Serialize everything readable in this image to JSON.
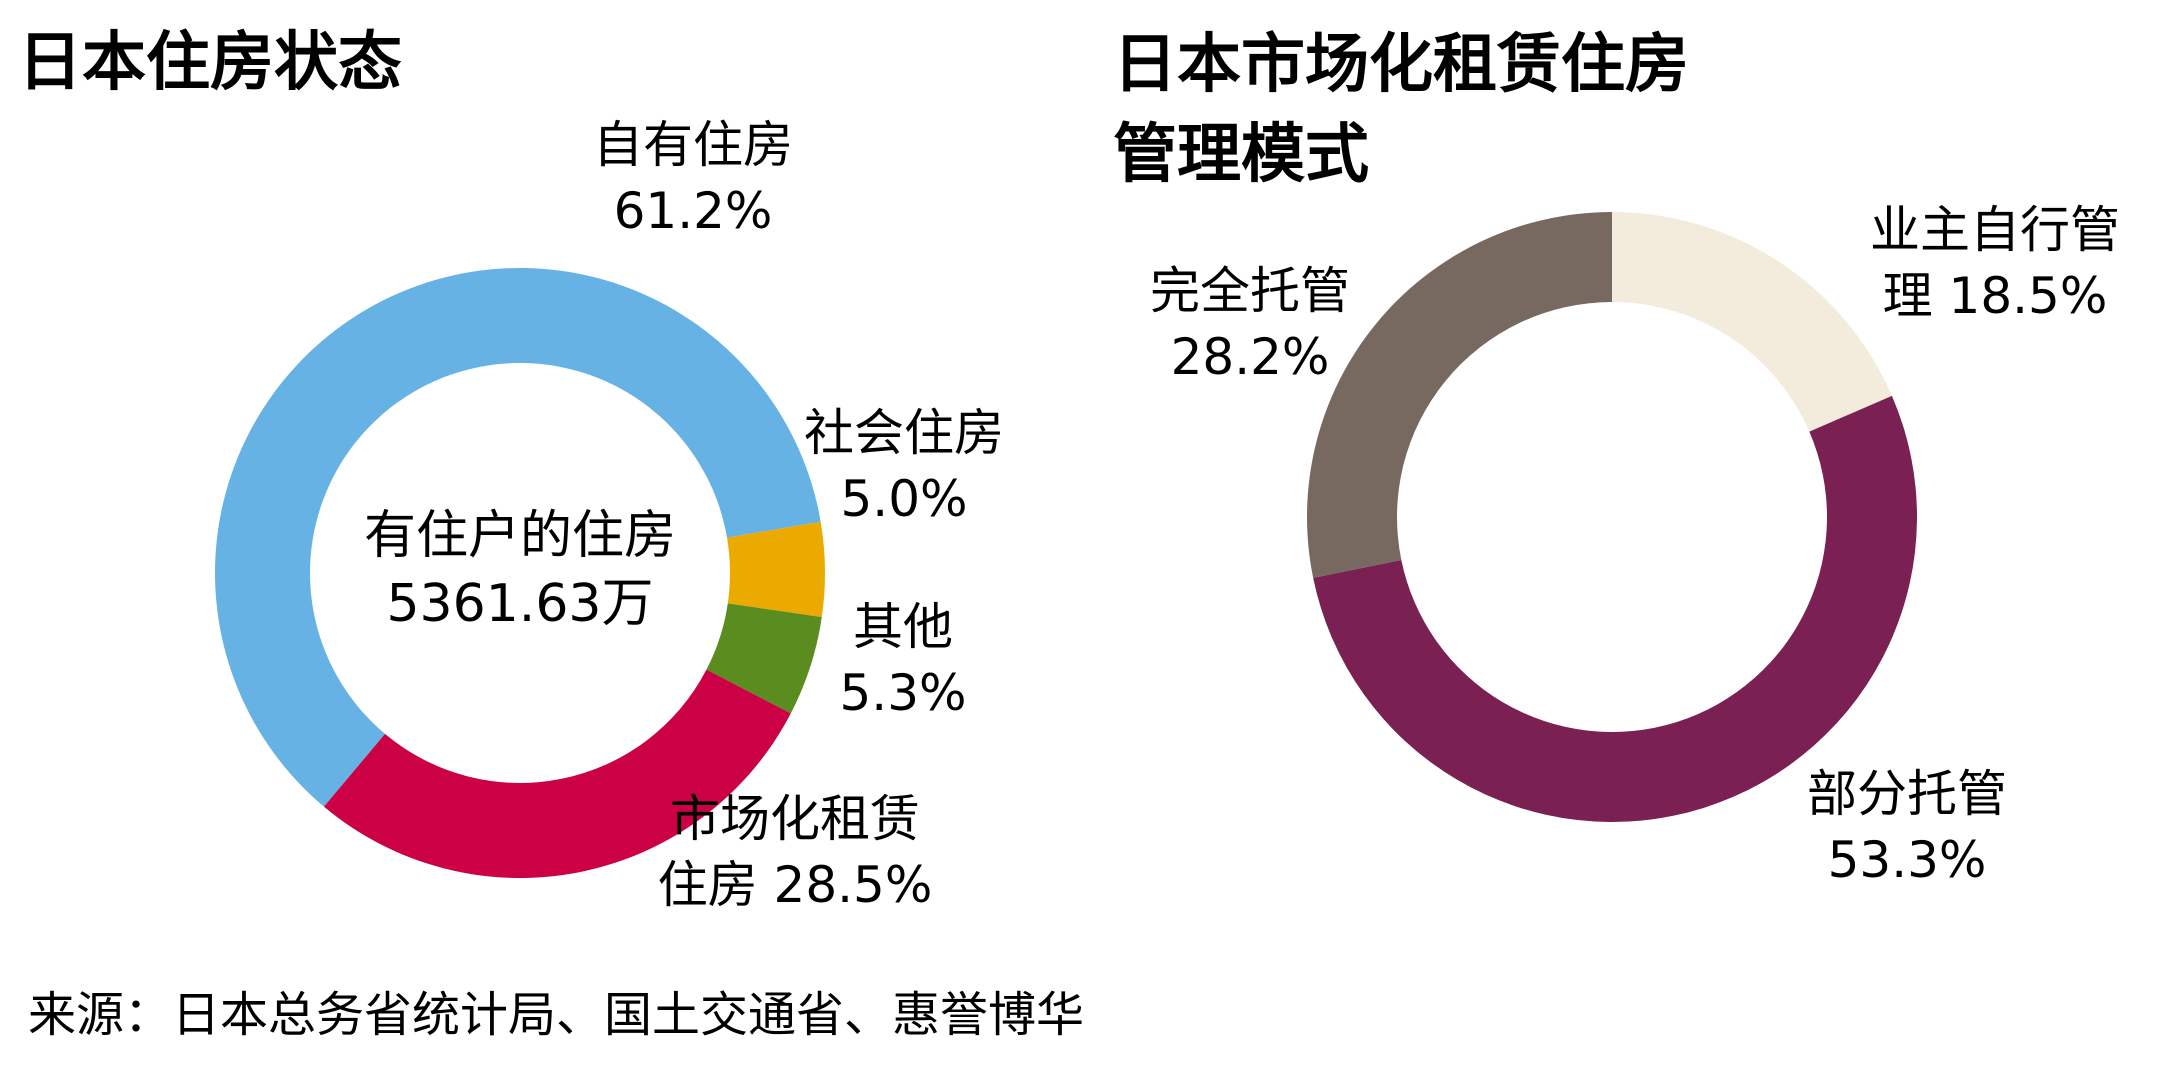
{
  "source_note": "来源：日本总务省统计局、国土交通省、惠誉博华",
  "chart_data": [
    {
      "type": "pie",
      "title": "日本住房状态",
      "center_label": [
        "有住户的住房",
        "5361.63万"
      ],
      "slices": [
        {
          "name": "自有住房",
          "label": [
            "自有住房",
            "61.2%"
          ],
          "value": 61.2,
          "color": "#66B2E4"
        },
        {
          "name": "社会住房",
          "label": [
            "社会住房",
            "5.0%"
          ],
          "value": 5.0,
          "color": "#EBAA00"
        },
        {
          "name": "其他",
          "label": [
            "其他",
            "5.3%"
          ],
          "value": 5.3,
          "color": "#5A8C20"
        },
        {
          "name": "市场化租赁住房",
          "label": [
            "市场化租赁",
            "住房 28.5%"
          ],
          "value": 28.5,
          "color": "#CC0044"
        }
      ]
    },
    {
      "type": "pie",
      "title": [
        "日本市场化租赁住房",
        "管理模式"
      ],
      "slices": [
        {
          "name": "业主自行管理",
          "label": [
            "业主自行管",
            "理 18.5%"
          ],
          "value": 18.5,
          "color": "#F3ECDC"
        },
        {
          "name": "部分托管",
          "label": [
            "部分托管",
            "53.3%"
          ],
          "value": 53.3,
          "color": "#7A2052"
        },
        {
          "name": "完全托管",
          "label": [
            "完全托管",
            "28.2%"
          ],
          "value": 28.2,
          "color": "#786960"
        }
      ]
    }
  ]
}
